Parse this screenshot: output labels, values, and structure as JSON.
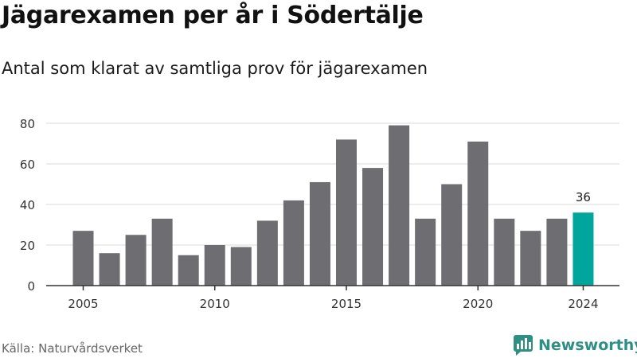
{
  "header": {
    "title": "Jägarexamen per år i Södertälje",
    "subtitle": "Antal som klarat av samtliga prov för jägarexamen"
  },
  "footer": {
    "source": "Källa: Naturvårdsverket",
    "brand": "Newsworthy"
  },
  "colors": {
    "bar": "#6e6d72",
    "highlight": "#00a69c",
    "grid": "#d9d9d9",
    "axis": "#333333",
    "brand": "#2f8f85"
  },
  "chart_data": {
    "type": "bar",
    "title": "Jägarexamen per år i Södertälje",
    "subtitle": "Antal som klarat av samtliga prov för jägarexamen",
    "xlabel": "",
    "ylabel": "",
    "categories": [
      2005,
      2006,
      2007,
      2008,
      2009,
      2010,
      2011,
      2012,
      2013,
      2014,
      2015,
      2016,
      2017,
      2018,
      2019,
      2020,
      2021,
      2022,
      2023,
      2024
    ],
    "values": [
      27,
      16,
      25,
      33,
      15,
      20,
      19,
      32,
      42,
      51,
      72,
      58,
      79,
      33,
      50,
      71,
      33,
      27,
      33,
      36
    ],
    "highlight": {
      "category": 2024,
      "label": "36"
    },
    "ylim": [
      0,
      80
    ],
    "yticks": [
      0,
      20,
      40,
      60,
      80
    ],
    "xticks": [
      2005,
      2010,
      2015,
      2020,
      2024
    ],
    "grid": true
  }
}
